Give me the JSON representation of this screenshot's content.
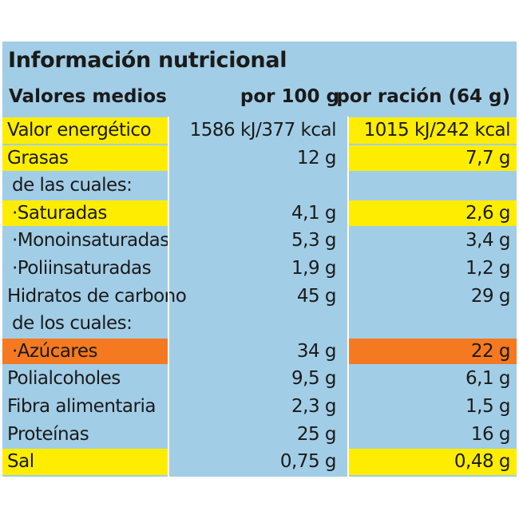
{
  "title": "Información nutricional",
  "header": {
    "col_label": "Valores medios",
    "col_per100": "por 100 g",
    "col_serving": "por ración (64 g)"
  },
  "colors": {
    "panel": "#a2cde6",
    "yellow": "#ffed00",
    "orange": "#f47920"
  },
  "rows": [
    {
      "label": "Valor energético",
      "per100": "1586 kJ/377 kcal",
      "serving": "1015 kJ/242 kcal",
      "hl": "yellow",
      "indent": false
    },
    {
      "label": "Grasas",
      "per100": "12 g",
      "serving": "7,7 g",
      "hl": "yellow",
      "indent": false
    },
    {
      "label": "de las cuales:",
      "per100": "",
      "serving": "",
      "hl": "",
      "indent": true
    },
    {
      "label": "·Saturadas",
      "per100": "4,1 g",
      "serving": "2,6 g",
      "hl": "yellow",
      "indent": true
    },
    {
      "label": "·Monoinsaturadas",
      "per100": "5,3 g",
      "serving": "3,4 g",
      "hl": "",
      "indent": true
    },
    {
      "label": "·Poliinsaturadas",
      "per100": "1,9 g",
      "serving": "1,2 g",
      "hl": "",
      "indent": true
    },
    {
      "label": "Hidratos de carbono",
      "per100": "45 g",
      "serving": "29 g",
      "hl": "",
      "indent": false
    },
    {
      "label": "de los cuales:",
      "per100": "",
      "serving": "",
      "hl": "",
      "indent": true
    },
    {
      "label": "·Azúcares",
      "per100": "34 g",
      "serving": "22 g",
      "hl": "orange",
      "indent": true
    },
    {
      "label": "Polialcoholes",
      "per100": "9,5 g",
      "serving": "6,1 g",
      "hl": "",
      "indent": false
    },
    {
      "label": "Fibra alimentaria",
      "per100": "2,3 g",
      "serving": "1,5 g",
      "hl": "",
      "indent": false
    },
    {
      "label": "Proteínas",
      "per100": "25 g",
      "serving": "16 g",
      "hl": "",
      "indent": false
    },
    {
      "label": "Sal",
      "per100": "0,75 g",
      "serving": "0,48 g",
      "hl": "yellow",
      "indent": false
    }
  ]
}
